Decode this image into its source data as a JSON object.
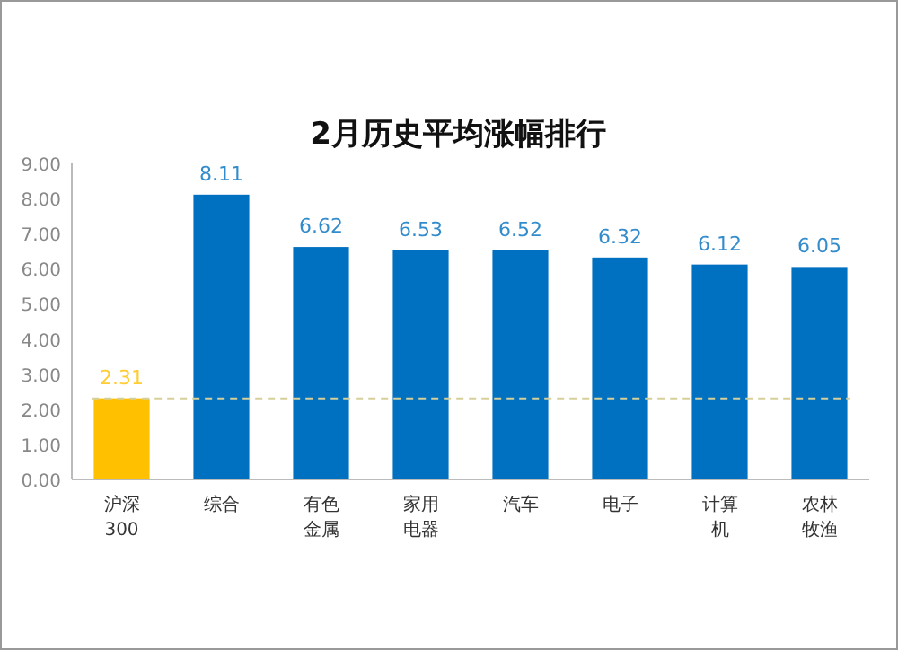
{
  "chart_data": {
    "type": "bar",
    "title": "2月历史平均涨幅排行",
    "categories": [
      "沪深300",
      "综合",
      "有色金属",
      "家用电器",
      "汽车",
      "电子",
      "计算机",
      "农林牧渔"
    ],
    "values": [
      2.31,
      8.11,
      6.62,
      6.53,
      6.52,
      6.32,
      6.12,
      6.05
    ],
    "colors": [
      "#ffc000",
      "#0070c0",
      "#0070c0",
      "#0070c0",
      "#0070c0",
      "#0070c0",
      "#0070c0",
      "#0070c0"
    ],
    "ylim": [
      0,
      9
    ],
    "yticks": [
      {
        "value": 0,
        "label": "0.00"
      },
      {
        "value": 1,
        "label": "1.00"
      },
      {
        "value": 2,
        "label": "2.00"
      },
      {
        "value": 3,
        "label": "3.00"
      },
      {
        "value": 4,
        "label": "4.00"
      },
      {
        "value": 5,
        "label": "5.00"
      },
      {
        "value": 6,
        "label": "6.00"
      },
      {
        "value": 7,
        "label": "7.00"
      },
      {
        "value": 8,
        "label": "8.00"
      },
      {
        "value": 9,
        "label": "9.00"
      }
    ],
    "data_labels": true,
    "ref_lines": [
      {
        "axis": "y",
        "value": 2.31,
        "color": "#d6cf9a",
        "line_style": "dashed"
      }
    ],
    "grid": false
  }
}
